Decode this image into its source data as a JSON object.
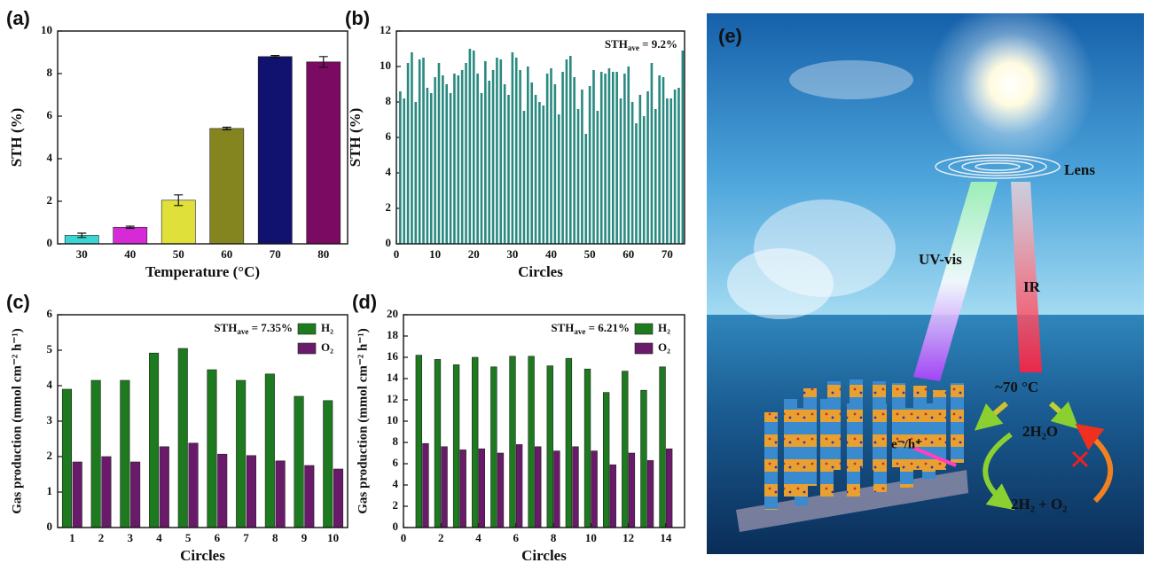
{
  "chart_data": [
    {
      "type": "bar",
      "panel_label": "(a)",
      "xlabel": "Temperature (°C)",
      "ylabel": "STH (%)",
      "categories": [
        "30",
        "40",
        "50",
        "60",
        "70",
        "80"
      ],
      "values": [
        0.4,
        0.78,
        2.05,
        5.42,
        8.8,
        8.55
      ],
      "errors": [
        0.1,
        0.05,
        0.25,
        0.06,
        0.05,
        0.25
      ],
      "colors": [
        "#3ad6d6",
        "#d62ad6",
        "#e0e03a",
        "#858520",
        "#111170",
        "#7a0a62"
      ],
      "ylim": [
        0,
        10
      ],
      "yticks": [
        0,
        2,
        4,
        6,
        8,
        10
      ]
    },
    {
      "type": "bar",
      "panel_label": "(b)",
      "xlabel": "Circles",
      "ylabel": "STH (%)",
      "annotation": {
        "main": "STH",
        "sub": "ave",
        "rest": " = 9.2%"
      },
      "x": [
        1,
        2,
        3,
        4,
        5,
        6,
        7,
        8,
        9,
        10,
        11,
        12,
        13,
        14,
        15,
        16,
        17,
        18,
        19,
        20,
        21,
        22,
        23,
        24,
        25,
        26,
        27,
        28,
        29,
        30,
        31,
        32,
        33,
        34,
        35,
        36,
        37,
        38,
        39,
        40,
        41,
        42,
        43,
        44,
        45,
        46,
        47,
        48,
        49,
        50,
        51,
        52,
        53,
        54,
        55,
        56,
        57,
        58,
        59,
        60,
        61,
        62,
        63,
        64,
        65,
        66,
        67,
        68,
        69,
        70,
        71,
        72,
        73,
        74
      ],
      "values": [
        8.6,
        8.2,
        10.2,
        10.8,
        8.0,
        10.4,
        10.5,
        8.8,
        8.5,
        9.4,
        10.2,
        9.5,
        9.0,
        8.5,
        9.6,
        9.5,
        9.8,
        10.2,
        11.0,
        10.9,
        9.6,
        8.5,
        10.3,
        9.2,
        9.8,
        10.5,
        10.4,
        9.0,
        8.4,
        10.8,
        10.5,
        9.8,
        7.5,
        10.0,
        9.1,
        8.4,
        8.0,
        7.8,
        9.6,
        9.9,
        9.0,
        7.3,
        9.7,
        10.4,
        10.6,
        9.4,
        7.6,
        8.7,
        6.2,
        8.9,
        9.8,
        7.5,
        9.7,
        9.6,
        9.9,
        9.7,
        9.7,
        8.2,
        9.6,
        10.0,
        8.0,
        6.8,
        8.4,
        7.2,
        8.6,
        10.2,
        7.6,
        9.5,
        9.4,
        8.2,
        8.2,
        8.7,
        8.8,
        10.9
      ],
      "color": "#2a8a80",
      "xlim": [
        0,
        74.5
      ],
      "xticks": [
        0,
        10,
        20,
        30,
        40,
        50,
        60,
        70
      ],
      "ylim": [
        0,
        12
      ],
      "yticks": [
        0,
        2,
        4,
        6,
        8,
        10,
        12
      ]
    },
    {
      "type": "bar",
      "panel_label": "(c)",
      "xlabel": "Circles",
      "ylabel": "Gas production (mmol cm⁻² h⁻¹)",
      "annotation": {
        "main": "STH",
        "sub": "ave",
        "rest": " = 7.35%"
      },
      "categories": [
        "1",
        "2",
        "3",
        "4",
        "5",
        "6",
        "7",
        "8",
        "9",
        "10"
      ],
      "series": [
        {
          "name": "H₂",
          "color": "#1e7a1e",
          "values": [
            3.9,
            4.15,
            4.15,
            4.92,
            5.05,
            4.45,
            4.15,
            4.33,
            3.7,
            3.58
          ]
        },
        {
          "name": "O₂",
          "color": "#6a1a6a",
          "values": [
            1.85,
            2.0,
            1.85,
            2.28,
            2.38,
            2.07,
            2.03,
            1.88,
            1.75,
            1.65
          ]
        }
      ],
      "ylim": [
        0,
        6
      ],
      "yticks": [
        0,
        1,
        2,
        3,
        4,
        5,
        6
      ]
    },
    {
      "type": "bar",
      "panel_label": "(d)",
      "xlabel": "Circles",
      "ylabel": "Gas production (mmol cm⁻² h⁻¹)",
      "annotation": {
        "main": "STH",
        "sub": "ave",
        "rest": " = 6.21%"
      },
      "x": [
        1,
        2,
        3,
        4,
        5,
        6,
        7,
        8,
        9,
        10,
        11,
        12,
        13,
        14
      ],
      "series": [
        {
          "name": "H₂",
          "color": "#1e7a1e",
          "values": [
            16.2,
            15.8,
            15.3,
            16.0,
            15.1,
            16.1,
            16.1,
            15.2,
            15.9,
            14.9,
            12.7,
            14.7,
            12.9,
            15.1
          ]
        },
        {
          "name": "O₂",
          "color": "#6a1a6a",
          "values": [
            7.9,
            7.6,
            7.3,
            7.4,
            7.0,
            7.8,
            7.6,
            7.2,
            7.6,
            7.2,
            5.9,
            7.0,
            6.3,
            7.4
          ]
        }
      ],
      "xlim": [
        0,
        15
      ],
      "xticks": [
        0,
        2,
        4,
        6,
        8,
        10,
        12,
        14
      ],
      "ylim": [
        0,
        20
      ],
      "yticks": [
        0,
        2,
        4,
        6,
        8,
        10,
        12,
        14,
        16,
        18,
        20
      ]
    }
  ],
  "illustration": {
    "label": "(e)",
    "lens": "Lens",
    "uv": "UV-vis",
    "ir": "IR",
    "temperature": "~70 °C",
    "water": "2H₂O",
    "products": "2H₂ + O₂",
    "carriers": "e⁻/h⁺"
  }
}
